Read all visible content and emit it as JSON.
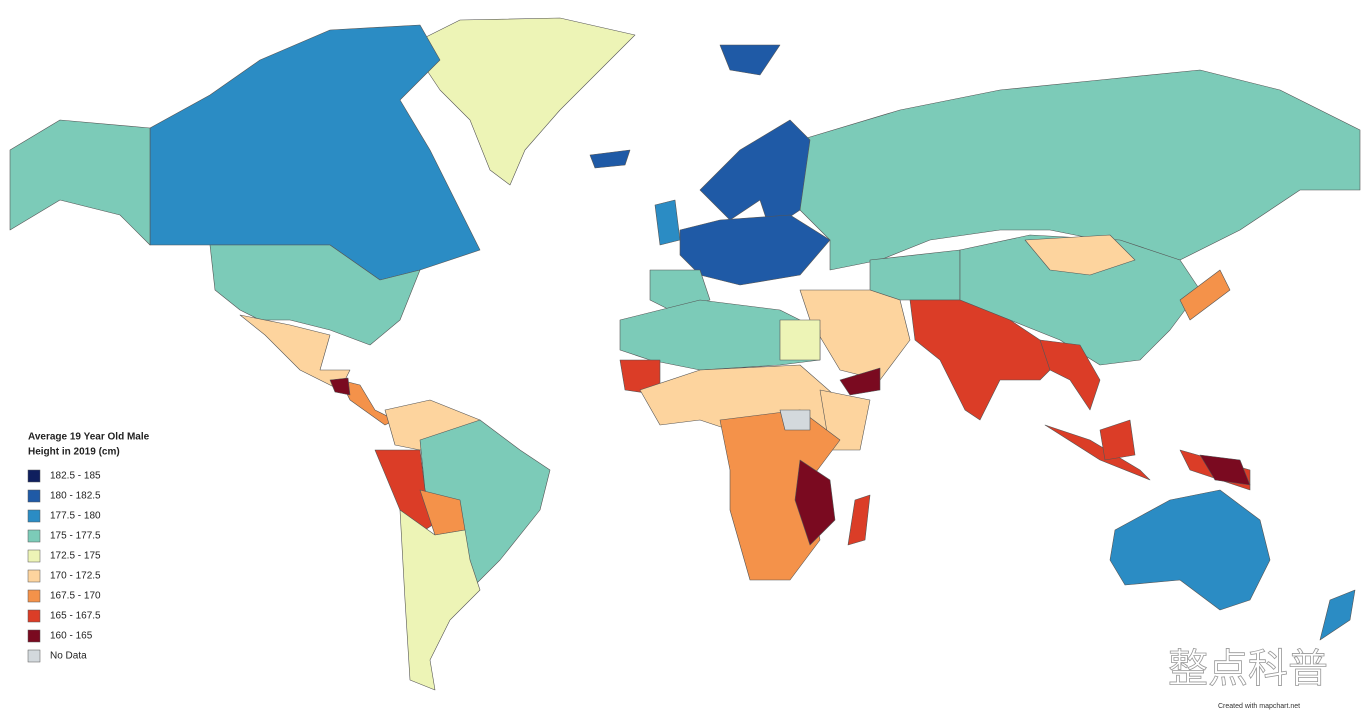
{
  "legend": {
    "title": [
      "Average 19 Year Old Male",
      "Height in 2019 (cm)"
    ],
    "items": [
      {
        "label": "182.5 - 185",
        "color": "#0f1f5e"
      },
      {
        "label": "180 - 182.5",
        "color": "#1f5aa6"
      },
      {
        "label": "177.5 - 180",
        "color": "#2b8cc4"
      },
      {
        "label": "175 - 177.5",
        "color": "#7ccbb8"
      },
      {
        "label": "172.5 - 175",
        "color": "#edf4b6"
      },
      {
        "label": "170 - 172.5",
        "color": "#fdd49e"
      },
      {
        "label": "167.5 - 170",
        "color": "#f4924a"
      },
      {
        "label": "165 - 167.5",
        "color": "#db3d27"
      },
      {
        "label": "160 - 165",
        "color": "#7a0a20"
      },
      {
        "label": "No Data",
        "color": "#d3d9dd"
      }
    ]
  },
  "credit": "Created with mapchart.net",
  "watermark": "整点科普"
}
